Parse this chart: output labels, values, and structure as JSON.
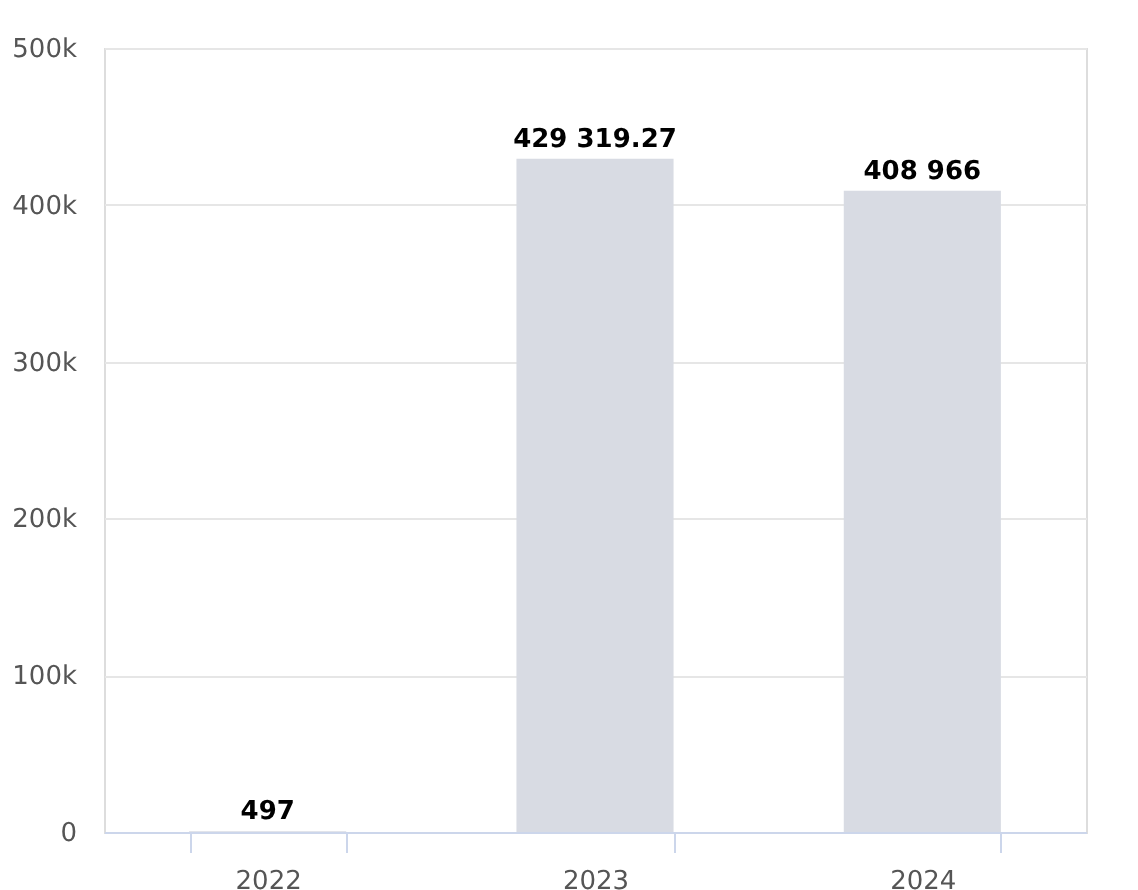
{
  "chart_data": {
    "type": "bar",
    "categories": [
      "2022",
      "2023",
      "2024"
    ],
    "values": [
      497,
      429319.27,
      408966
    ],
    "value_labels": [
      "497",
      "429 319.27",
      "408 966"
    ],
    "color": "#d8dbe3",
    "ylim": [
      0,
      500000
    ],
    "yticks": [
      {
        "value": 0,
        "label": "0"
      },
      {
        "value": 100000,
        "label": "100k"
      },
      {
        "value": 200000,
        "label": "200k"
      },
      {
        "value": 300000,
        "label": "300k"
      },
      {
        "value": 400000,
        "label": "400k"
      },
      {
        "value": 500000,
        "label": "500k"
      }
    ],
    "grid": "y"
  }
}
